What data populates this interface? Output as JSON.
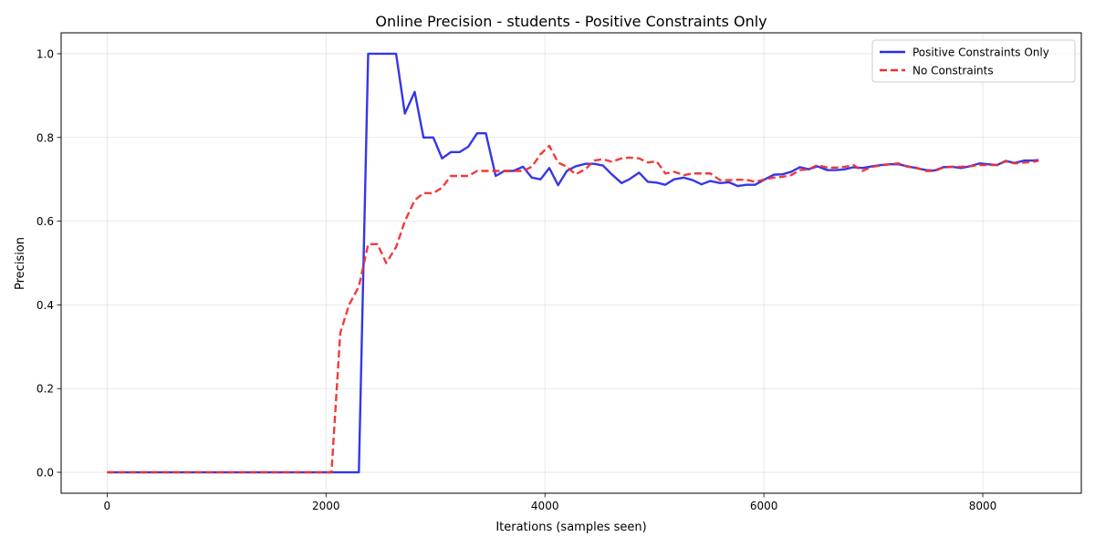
{
  "chart_data": {
    "type": "line",
    "title": "Online Precision - students - Positive Constraints Only",
    "xlabel": "Iterations (samples seen)",
    "ylabel": "Precision",
    "xlim": [
      -420,
      8900
    ],
    "ylim": [
      -0.05,
      1.05
    ],
    "xticks": [
      0,
      2000,
      4000,
      6000,
      8000
    ],
    "xtick_labels": [
      "0",
      "2000",
      "4000",
      "6000",
      "8000"
    ],
    "yticks": [
      0.0,
      0.2,
      0.4,
      0.6,
      0.8,
      1.0
    ],
    "ytick_labels": [
      "0.0",
      "0.2",
      "0.4",
      "0.6",
      "0.8",
      "1.0"
    ],
    "grid": true,
    "legend_position": "top-right",
    "series": [
      {
        "name": "Positive Constraints Only",
        "color": "#2b2bea",
        "style": "solid",
        "x": [
          0,
          2300,
          2385,
          2640,
          2720,
          2810,
          2890,
          2980,
          3060,
          3140,
          3220,
          3300,
          3380,
          3460,
          3550,
          3630,
          3710,
          3800,
          3880,
          3960,
          4040,
          4120,
          4200,
          4280,
          4370,
          4450,
          4530,
          4610,
          4700,
          4770,
          4860,
          4940,
          5020,
          5100,
          5180,
          5270,
          5350,
          5430,
          5510,
          5600,
          5680,
          5760,
          5840,
          5920,
          6010,
          6090,
          6170,
          6250,
          6330,
          6410,
          6490,
          6580,
          6660,
          6740,
          6820,
          6900,
          6990,
          7070,
          7150,
          7230,
          7310,
          7390,
          7480,
          7560,
          7640,
          7720,
          7800,
          7880,
          7970,
          8050,
          8130,
          8210,
          8290,
          8380,
          8460,
          8510
        ],
        "y": [
          0.0,
          0.0,
          1.0,
          1.0,
          0.857,
          0.909,
          0.8,
          0.8,
          0.75,
          0.765,
          0.765,
          0.778,
          0.81,
          0.81,
          0.708,
          0.72,
          0.72,
          0.73,
          0.704,
          0.7,
          0.727,
          0.686,
          0.72,
          0.731,
          0.737,
          0.737,
          0.733,
          0.712,
          0.691,
          0.7,
          0.716,
          0.694,
          0.692,
          0.687,
          0.7,
          0.704,
          0.698,
          0.688,
          0.696,
          0.691,
          0.693,
          0.684,
          0.687,
          0.687,
          0.7,
          0.711,
          0.712,
          0.718,
          0.729,
          0.724,
          0.731,
          0.722,
          0.722,
          0.724,
          0.729,
          0.727,
          0.731,
          0.734,
          0.736,
          0.736,
          0.731,
          0.727,
          0.722,
          0.721,
          0.729,
          0.73,
          0.727,
          0.731,
          0.738,
          0.736,
          0.734,
          0.744,
          0.739,
          0.745,
          0.745,
          0.746
        ]
      },
      {
        "name": "No Constraints",
        "color": "#f03030",
        "style": "dashed",
        "x": [
          0,
          2050,
          2130,
          2210,
          2300,
          2385,
          2470,
          2550,
          2640,
          2720,
          2810,
          2890,
          2980,
          3060,
          3140,
          3220,
          3300,
          3380,
          3460,
          3550,
          3630,
          3710,
          3800,
          3880,
          3960,
          4040,
          4080,
          4120,
          4200,
          4280,
          4370,
          4450,
          4530,
          4610,
          4700,
          4770,
          4860,
          4940,
          5020,
          5100,
          5180,
          5270,
          5350,
          5430,
          5510,
          5600,
          5680,
          5760,
          5840,
          5920,
          6010,
          6090,
          6170,
          6250,
          6330,
          6410,
          6490,
          6580,
          6660,
          6740,
          6820,
          6900,
          6990,
          7070,
          7150,
          7230,
          7310,
          7390,
          7480,
          7560,
          7640,
          7720,
          7800,
          7880,
          7970,
          8050,
          8130,
          8210,
          8290,
          8380,
          8460,
          8510
        ],
        "y": [
          0.0,
          0.0,
          0.333,
          0.4,
          0.444,
          0.545,
          0.545,
          0.5,
          0.538,
          0.6,
          0.65,
          0.667,
          0.667,
          0.68,
          0.708,
          0.708,
          0.708,
          0.72,
          0.72,
          0.72,
          0.72,
          0.72,
          0.72,
          0.73,
          0.76,
          0.78,
          0.76,
          0.74,
          0.73,
          0.712,
          0.724,
          0.745,
          0.748,
          0.742,
          0.75,
          0.752,
          0.75,
          0.74,
          0.743,
          0.714,
          0.718,
          0.71,
          0.714,
          0.714,
          0.714,
          0.698,
          0.698,
          0.699,
          0.699,
          0.694,
          0.7,
          0.704,
          0.706,
          0.71,
          0.722,
          0.724,
          0.734,
          0.728,
          0.728,
          0.73,
          0.734,
          0.72,
          0.73,
          0.733,
          0.736,
          0.738,
          0.73,
          0.728,
          0.72,
          0.72,
          0.728,
          0.73,
          0.73,
          0.731,
          0.734,
          0.734,
          0.734,
          0.743,
          0.738,
          0.74,
          0.742,
          0.744
        ]
      }
    ]
  }
}
